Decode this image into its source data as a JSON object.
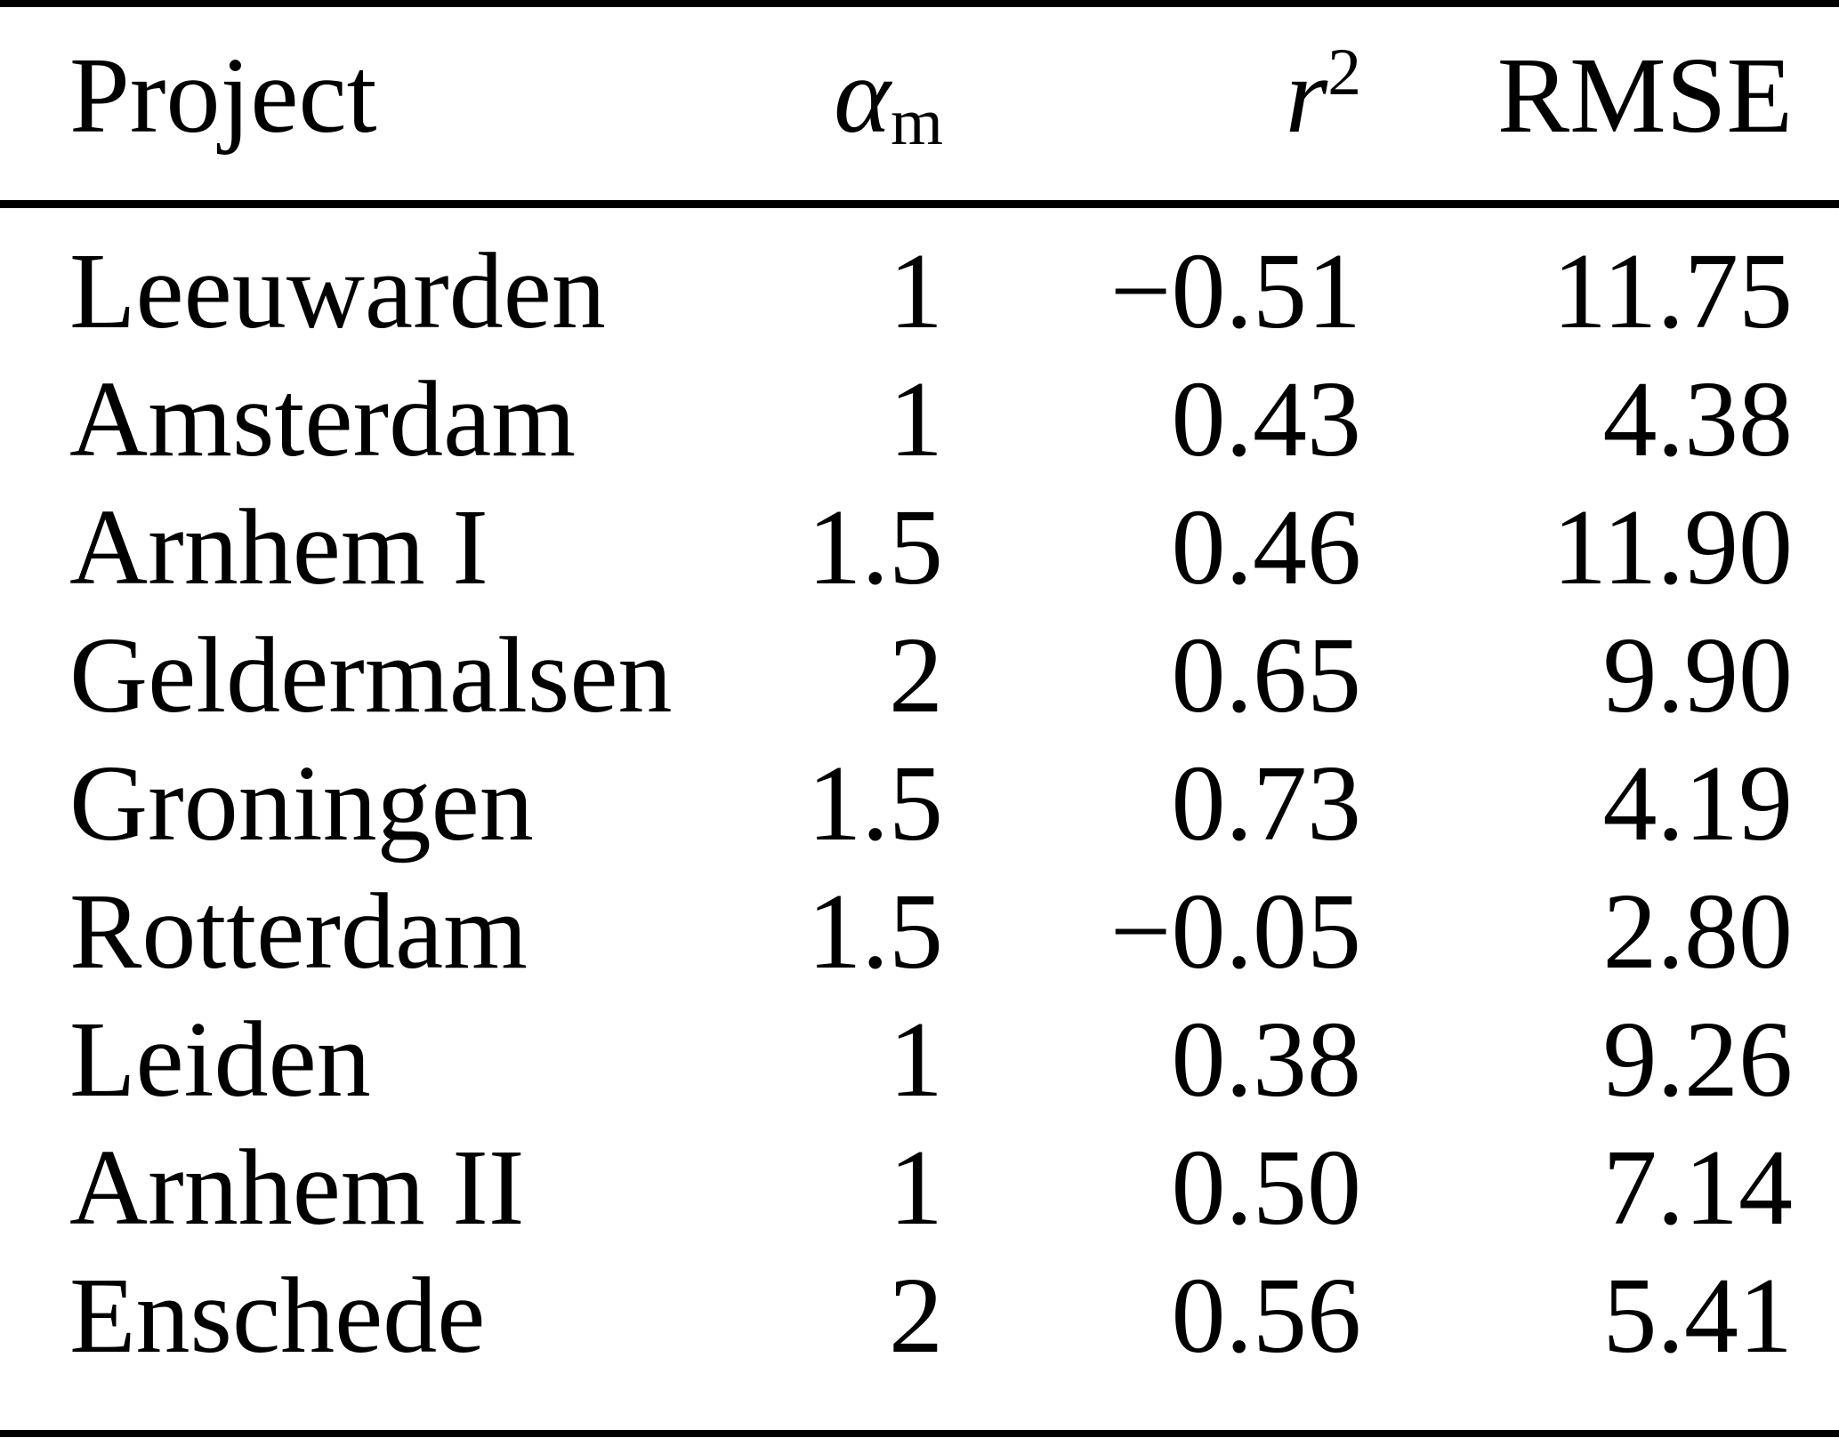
{
  "table": {
    "columns": {
      "project": "Project",
      "alpha_main": "α",
      "alpha_sub": "m",
      "r_main": "r",
      "r_sup": "2",
      "rmse": "RMSE"
    },
    "rows": [
      {
        "project": "Leeuwarden",
        "alpha_m": "1",
        "r2": "−0.51",
        "rmse": "11.75"
      },
      {
        "project": "Amsterdam",
        "alpha_m": "1",
        "r2": "0.43",
        "rmse": "4.38"
      },
      {
        "project": "Arnhem I",
        "alpha_m": "1.5",
        "r2": "0.46",
        "rmse": "11.90"
      },
      {
        "project": "Geldermalsen",
        "alpha_m": "2",
        "r2": "0.65",
        "rmse": "9.90"
      },
      {
        "project": "Groningen",
        "alpha_m": "1.5",
        "r2": "0.73",
        "rmse": "4.19"
      },
      {
        "project": "Rotterdam",
        "alpha_m": "1.5",
        "r2": "−0.05",
        "rmse": "2.80"
      },
      {
        "project": "Leiden",
        "alpha_m": "1",
        "r2": "0.38",
        "rmse": "9.26"
      },
      {
        "project": "Arnhem II",
        "alpha_m": "1",
        "r2": "0.50",
        "rmse": "7.14"
      },
      {
        "project": "Enschede",
        "alpha_m": "2",
        "r2": "0.56",
        "rmse": "5.41"
      }
    ]
  },
  "colors": {
    "text": "#000000",
    "background": "#ffffff",
    "rule": "#000000"
  },
  "chart_data": {
    "type": "table",
    "title": "",
    "columns": [
      "Project",
      "α_m",
      "r^2",
      "RMSE"
    ],
    "rows": [
      [
        "Leeuwarden",
        1,
        -0.51,
        11.75
      ],
      [
        "Amsterdam",
        1,
        0.43,
        4.38
      ],
      [
        "Arnhem I",
        1.5,
        0.46,
        11.9
      ],
      [
        "Geldermalsen",
        2,
        0.65,
        9.9
      ],
      [
        "Groningen",
        1.5,
        0.73,
        4.19
      ],
      [
        "Rotterdam",
        1.5,
        -0.05,
        2.8
      ],
      [
        "Leiden",
        1,
        0.38,
        9.26
      ],
      [
        "Arnhem II",
        1,
        0.5,
        7.14
      ],
      [
        "Enschede",
        2,
        0.56,
        5.41
      ]
    ]
  }
}
